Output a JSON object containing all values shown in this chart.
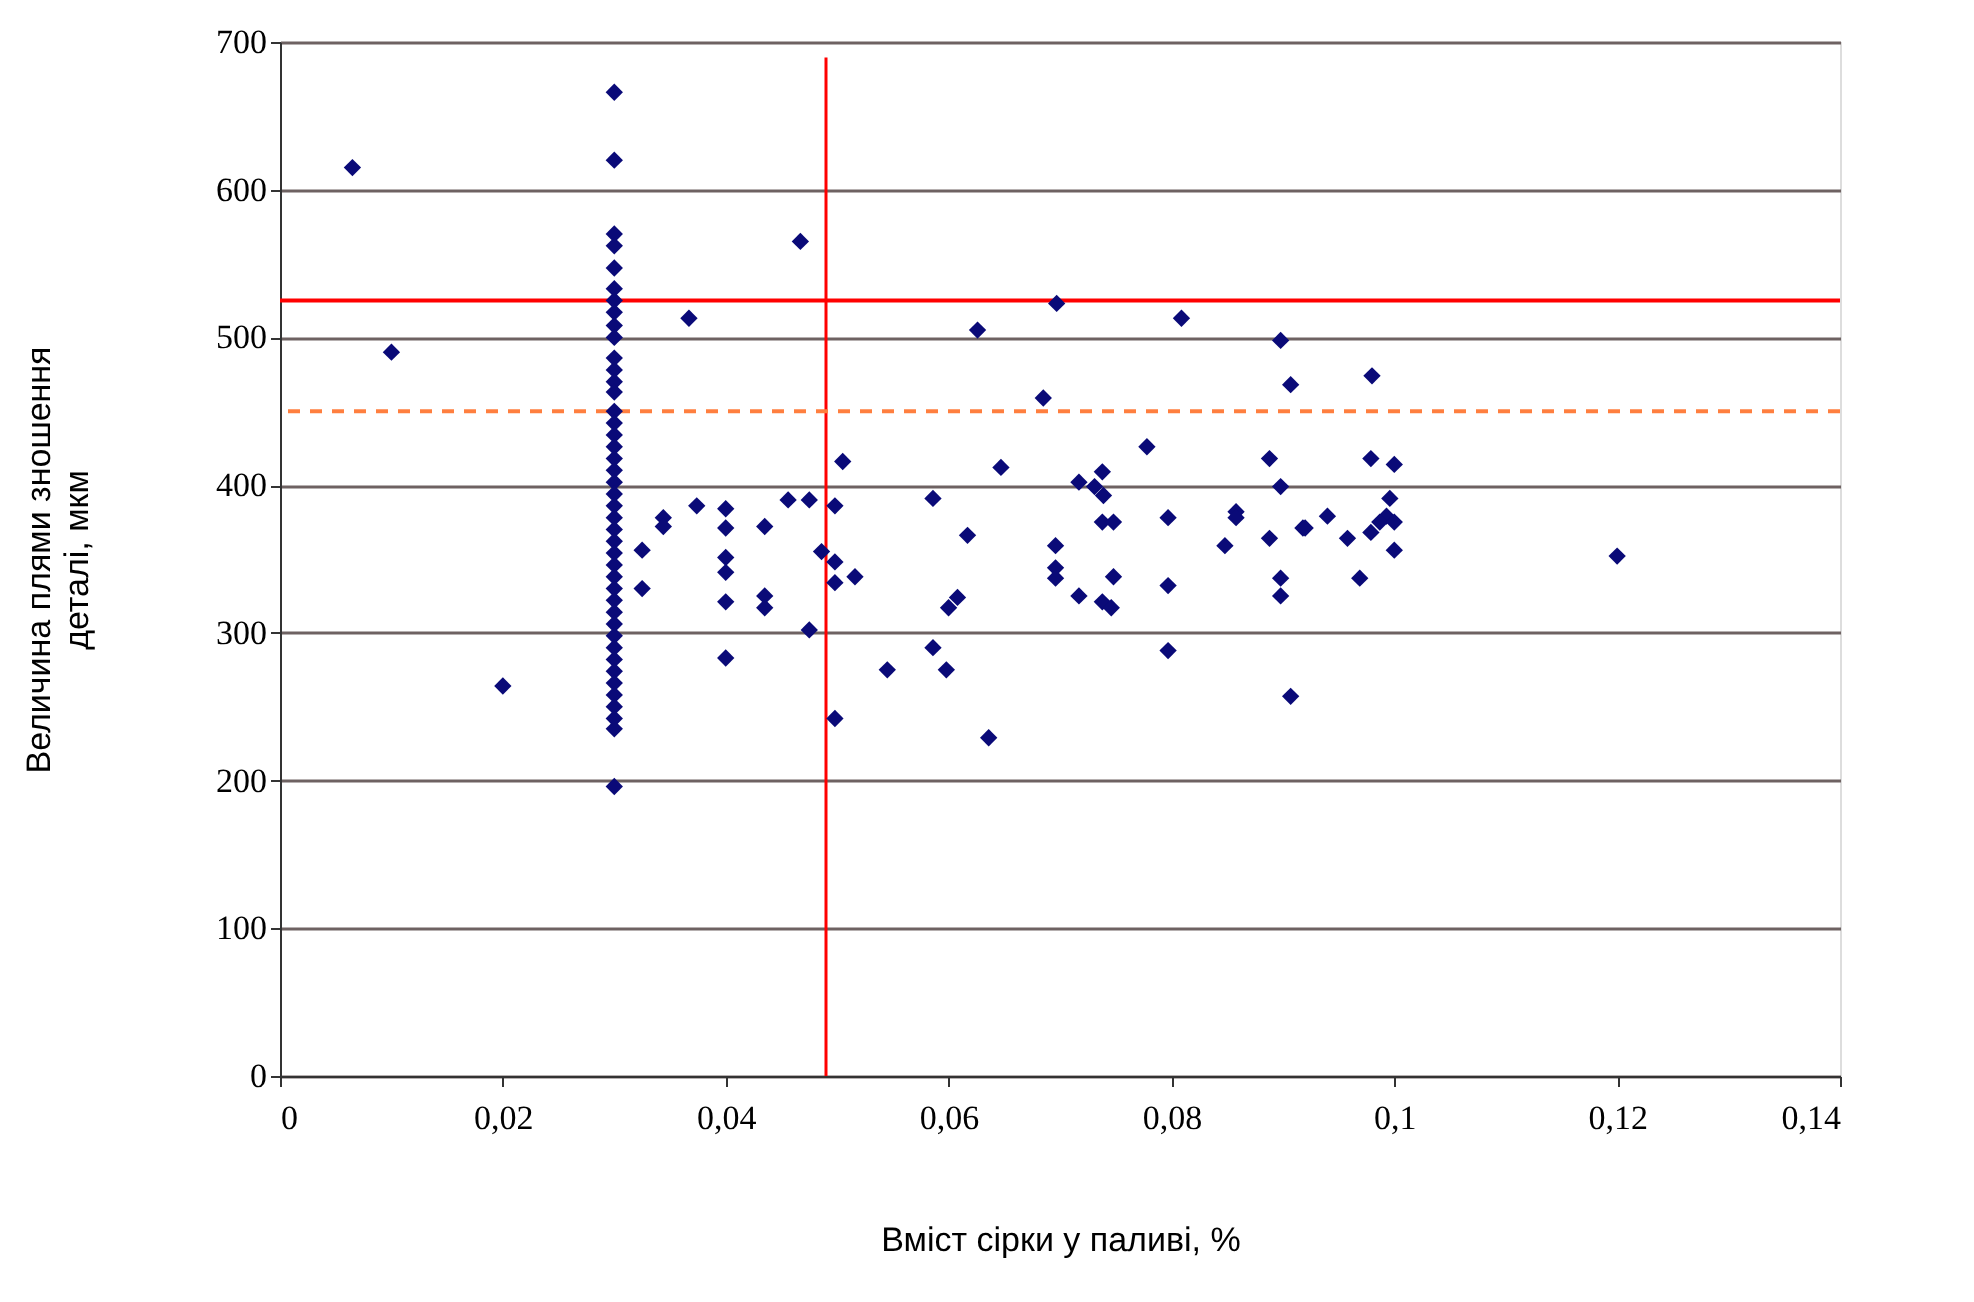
{
  "chart_data": {
    "type": "scatter",
    "xlabel": "Вміст сірки у паливі, %",
    "ylabel": "Величина плями зношення\nдеталі, мкм",
    "xlim": [
      0,
      0.14
    ],
    "ylim": [
      0,
      700
    ],
    "xticks": [
      0,
      {
        "value": 0.02,
        "label": "0,02"
      },
      {
        "value": 0.04,
        "label": "0,04"
      },
      {
        "value": 0.06,
        "label": "0,06"
      },
      {
        "value": 0.08,
        "label": "0,08"
      },
      {
        "value": 0.1,
        "label": "0,1"
      },
      {
        "value": 0.12,
        "label": "0,12"
      },
      {
        "value": 0.14,
        "label": "0,14"
      }
    ],
    "yticks": [
      0,
      100,
      200,
      300,
      400,
      500,
      600,
      700
    ],
    "grid": "y",
    "marker": "diamond",
    "series": [
      {
        "color": "#0a0a78",
        "x": [
          0.0065,
          0.01,
          0.02,
          0.03,
          0.03,
          0.03,
          0.03,
          0.03,
          0.03,
          0.03,
          0.03,
          0.03,
          0.03,
          0.03,
          0.03,
          0.03,
          0.03,
          0.03,
          0.03,
          0.03,
          0.03,
          0.03,
          0.03,
          0.03,
          0.03,
          0.03,
          0.03,
          0.03,
          0.03,
          0.03,
          0.03,
          0.03,
          0.03,
          0.03,
          0.03,
          0.03,
          0.03,
          0.03,
          0.03,
          0.03,
          0.03,
          0.03,
          0.03,
          0.03,
          0.03,
          0.03,
          0.0325,
          0.0325,
          0.0344,
          0.0344,
          0.0374,
          0.0367,
          0.04,
          0.04,
          0.04,
          0.04,
          0.04,
          0.04,
          0.0435,
          0.0435,
          0.0435,
          0.0456,
          0.0467,
          0.0475,
          0.0475,
          0.0486,
          0.0498,
          0.0498,
          0.0498,
          0.0498,
          0.0505,
          0.0516,
          0.0545,
          0.0586,
          0.0586,
          0.0598,
          0.06,
          0.0608,
          0.0617,
          0.0626,
          0.0636,
          0.0647,
          0.0685,
          0.0697,
          0.0696,
          0.0696,
          0.0696,
          0.0717,
          0.0717,
          0.0731,
          0.0738,
          0.0739,
          0.0738,
          0.0748,
          0.0738,
          0.0746,
          0.0748,
          0.0778,
          0.0797,
          0.0797,
          0.0797,
          0.0809,
          0.0848,
          0.0858,
          0.0858,
          0.0888,
          0.0888,
          0.0898,
          0.0898,
          0.0898,
          0.0898,
          0.0907,
          0.0907,
          0.0918,
          0.092,
          0.094,
          0.0958,
          0.0969,
          0.098,
          0.0979,
          0.1,
          0.0996,
          0.0993,
          0.0987,
          0.0979,
          0.1,
          0.1,
          0.12
        ],
        "values": [
          615,
          490,
          264,
          666,
          620,
          570,
          562,
          547,
          533,
          525,
          517,
          508,
          500,
          486,
          478,
          470,
          463,
          450,
          442,
          434,
          426,
          418,
          410,
          402,
          394,
          386,
          378,
          370,
          362,
          354,
          346,
          338,
          330,
          322,
          314,
          306,
          298,
          290,
          282,
          274,
          266,
          258,
          250,
          242,
          235,
          196,
          356,
          330,
          378,
          372,
          386,
          513,
          384,
          371,
          351,
          341,
          321,
          283,
          372,
          325,
          317,
          390,
          565,
          390,
          302,
          355,
          386,
          348,
          334,
          242,
          416,
          338,
          275,
          391,
          290,
          275,
          317,
          324,
          366,
          505,
          229,
          412,
          459,
          523,
          359,
          344,
          337,
          402,
          325,
          399,
          409,
          393,
          375,
          375,
          321,
          317,
          338,
          426,
          378,
          332,
          288,
          513,
          359,
          382,
          378,
          418,
          364,
          399,
          337,
          325,
          498,
          468,
          257,
          371,
          371,
          379,
          364,
          337,
          474,
          418,
          414,
          391,
          379,
          375,
          368,
          375,
          356,
          352
        ]
      }
    ],
    "ref_lines": [
      {
        "axis": "y",
        "value": 525,
        "color": "#ff0000",
        "line_style": "solid"
      },
      {
        "axis": "y",
        "value": 450,
        "color": "#ff7f3f",
        "line_style": "dashed"
      },
      {
        "axis": "x",
        "value": 0.049,
        "color": "#ff0000",
        "line_style": "solid"
      }
    ]
  }
}
